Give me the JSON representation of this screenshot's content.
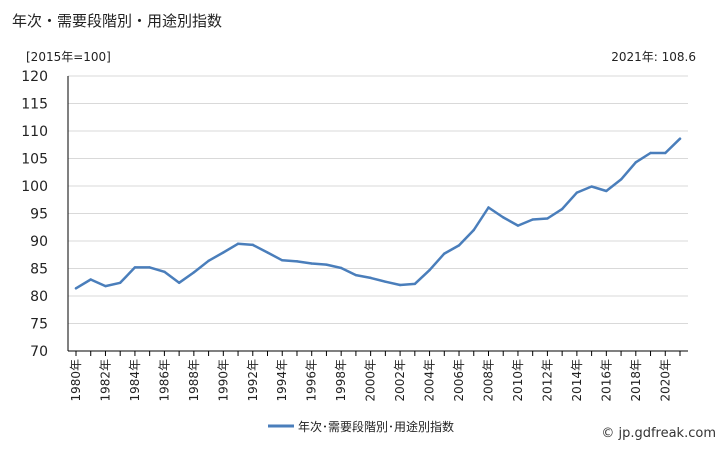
{
  "header": {
    "title": "年次・需要段階別・用途別指数",
    "unit_label": "[2015年=100]",
    "latest_label": "2021年: 108.6"
  },
  "footer": {
    "credit": "© jp.gdfreak.com"
  },
  "colors": {
    "line": "#4a7ebb",
    "grid": "#d9d9d9",
    "axis": "#000000"
  },
  "chart_data": {
    "type": "line",
    "x": [
      1980,
      1981,
      1982,
      1983,
      1984,
      1985,
      1986,
      1987,
      1988,
      1989,
      1990,
      1991,
      1992,
      1993,
      1994,
      1995,
      1996,
      1997,
      1998,
      1999,
      2000,
      2001,
      2002,
      2003,
      2004,
      2005,
      2006,
      2007,
      2008,
      2009,
      2010,
      2011,
      2012,
      2013,
      2014,
      2015,
      2016,
      2017,
      2018,
      2019,
      2020,
      2021
    ],
    "x_tick_labels": [
      "1980年",
      "1982年",
      "1984年",
      "1986年",
      "1988年",
      "1990年",
      "1992年",
      "1994年",
      "1996年",
      "1998年",
      "2000年",
      "2002年",
      "2004年",
      "2006年",
      "2008年",
      "2010年",
      "2012年",
      "2014年",
      "2016年",
      "2018年",
      "2020年"
    ],
    "series": [
      {
        "name": "年次･需要段階別･用途別指数",
        "values": [
          81.4,
          83.0,
          81.8,
          82.4,
          85.2,
          85.2,
          84.4,
          82.4,
          84.3,
          86.4,
          87.9,
          89.5,
          89.3,
          87.9,
          86.5,
          86.3,
          85.9,
          85.7,
          85.1,
          83.8,
          83.3,
          82.6,
          82.0,
          82.2,
          84.7,
          87.7,
          89.2,
          92.0,
          96.1,
          94.3,
          92.8,
          93.9,
          94.1,
          95.8,
          98.8,
          99.9,
          99.1,
          101.2,
          104.3,
          106.0,
          106.0,
          108.6
        ]
      }
    ],
    "y_ticks": [
      70,
      75,
      80,
      85,
      90,
      95,
      100,
      105,
      110,
      115,
      120
    ],
    "ylim": [
      70,
      120
    ],
    "grid": true,
    "legend_position": "bottom-center",
    "xlabel": "",
    "ylabel": ""
  }
}
